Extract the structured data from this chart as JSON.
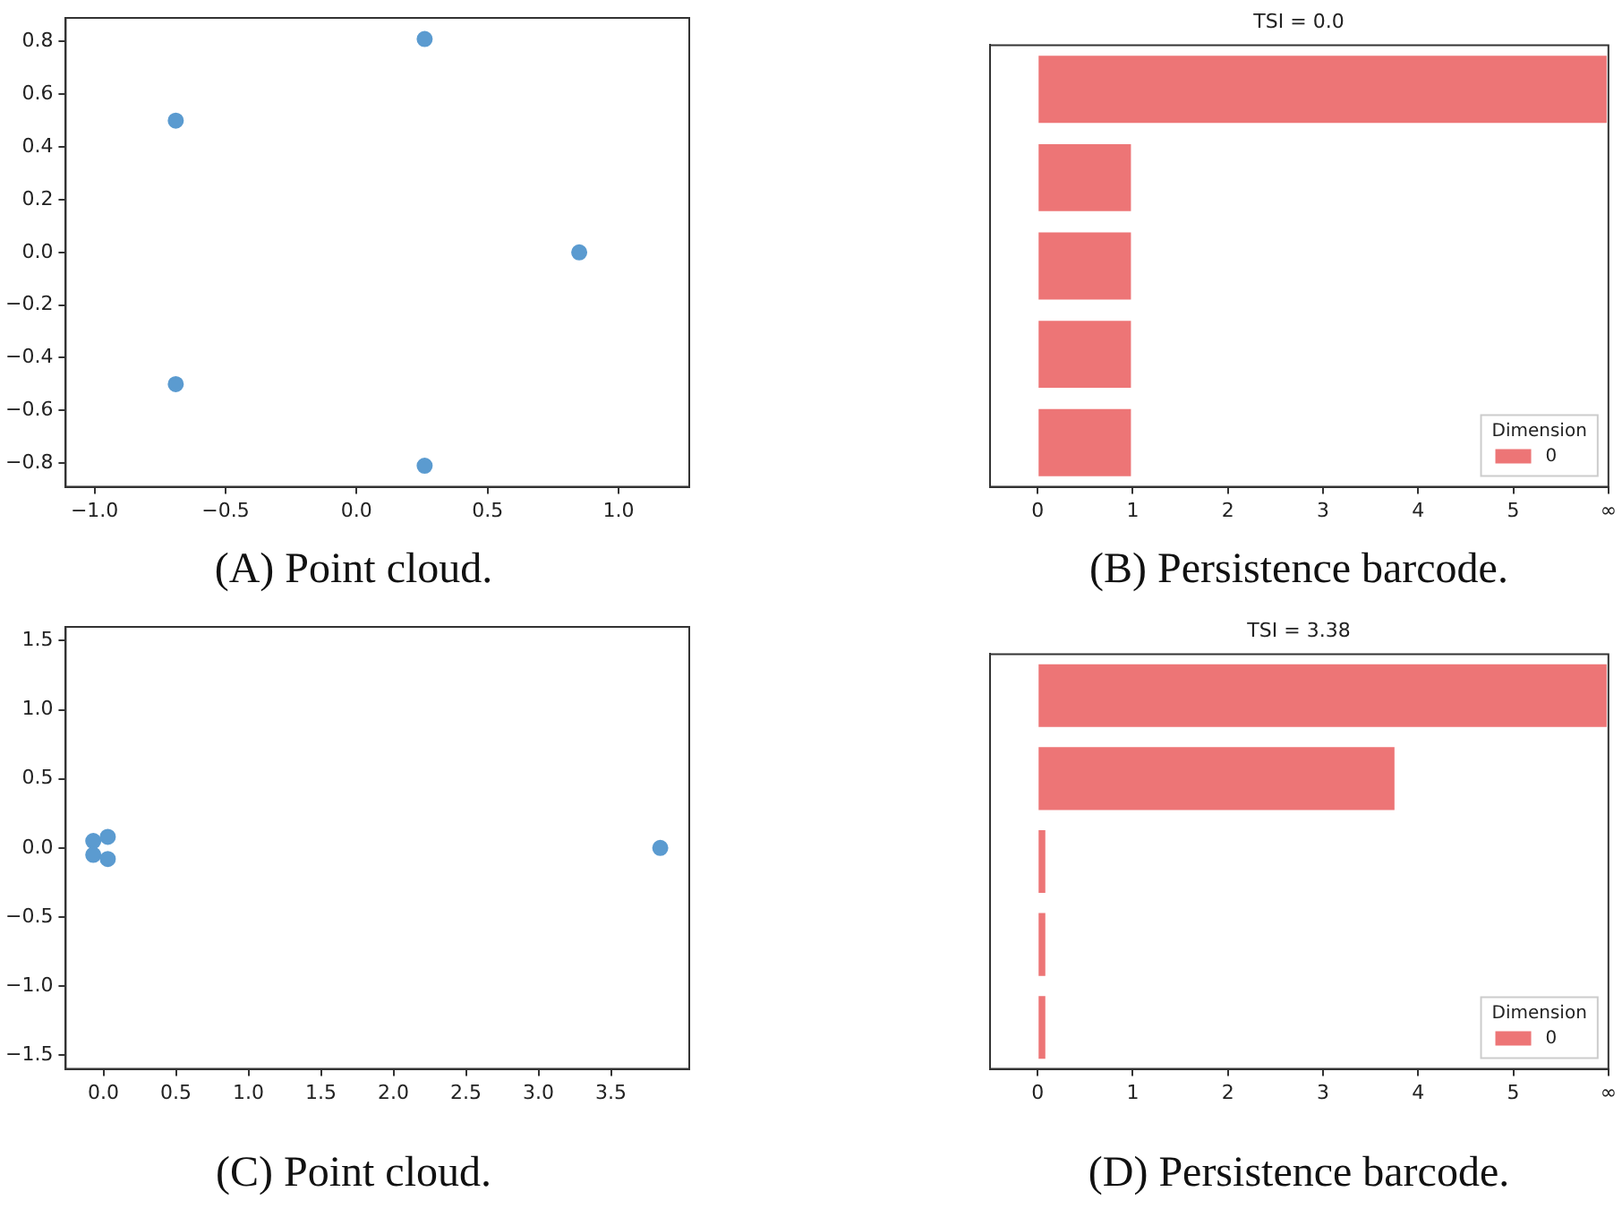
{
  "chart_data": [
    {
      "type": "scatter",
      "x": [
        0.85,
        0.26,
        -0.69,
        -0.69,
        0.26
      ],
      "values": [
        0,
        0.81,
        0.5,
        -0.5,
        -0.81
      ],
      "color": "#5b9bd0",
      "marker": "circle",
      "xlim": [
        -1.11,
        1.27
      ],
      "xticks": [
        {
          "value": -1,
          "label": "−1.0"
        },
        {
          "value": -0.5,
          "label": "−0.5"
        },
        {
          "value": 0,
          "label": "0.0"
        },
        {
          "value": 0.5,
          "label": "0.5"
        },
        {
          "value": 1,
          "label": "1.0"
        }
      ],
      "ylim": [
        -0.89,
        0.89
      ],
      "yticks": [
        {
          "value": -0.8,
          "label": "−0.8"
        },
        {
          "value": -0.6,
          "label": "−0.6"
        },
        {
          "value": -0.4,
          "label": "−0.4"
        },
        {
          "value": -0.2,
          "label": "−0.2"
        },
        {
          "value": 0,
          "label": "0.0"
        },
        {
          "value": 0.2,
          "label": "0.2"
        },
        {
          "value": 0.4,
          "label": "0.4"
        },
        {
          "value": 0.6,
          "label": "0.6"
        },
        {
          "value": 0.8,
          "label": "0.8"
        }
      ],
      "grid": false,
      "annotations": [
        "(A) Point cloud."
      ]
    },
    {
      "type": "bar",
      "orientation": "horizontal",
      "title": "TSI = 0.0",
      "categories": [
        null,
        null,
        null,
        null,
        null
      ],
      "legend_title": "Dimension",
      "legend": "bottom right",
      "series": [
        {
          "name": "0",
          "color": "#ed7576",
          "values": [
            6,
            1,
            1,
            1,
            1
          ]
        }
      ],
      "xlim": [
        -0.5,
        6
      ],
      "xticks": [
        0,
        1,
        2,
        3,
        4,
        5,
        {
          "value": 6,
          "label": "∞"
        }
      ],
      "grid": false,
      "annotations": [
        "(B) Persistence barcode."
      ]
    },
    {
      "type": "scatter",
      "x": [
        -0.07,
        0.03,
        -0.07,
        0.03,
        3.84
      ],
      "values": [
        0.05,
        0.08,
        -0.05,
        -0.08,
        0
      ],
      "color": "#5b9bd0",
      "marker": "circle",
      "xlim": [
        -0.26,
        4.04
      ],
      "xticks": [
        {
          "value": 0,
          "label": "0.0"
        },
        0.5,
        {
          "value": 1,
          "label": "1.0"
        },
        1.5,
        {
          "value": 2,
          "label": "2.0"
        },
        2.5,
        {
          "value": 3,
          "label": "3.0"
        },
        3.5
      ],
      "ylim": [
        -1.6,
        1.6
      ],
      "yticks": [
        {
          "value": -1.5,
          "label": "−1.5"
        },
        {
          "value": -1,
          "label": "−1.0"
        },
        {
          "value": -0.5,
          "label": "−0.5"
        },
        {
          "value": 0,
          "label": "0.0"
        },
        0.5,
        {
          "value": 1,
          "label": "1.0"
        },
        1.5
      ],
      "grid": false,
      "annotations": [
        "(C) Point cloud."
      ]
    },
    {
      "type": "bar",
      "orientation": "horizontal",
      "title": "TSI = 3.38",
      "categories": [
        null,
        null,
        null,
        null,
        null
      ],
      "legend_title": "Dimension",
      "legend": "bottom right",
      "series": [
        {
          "name": "0",
          "color": "#ed7576",
          "values": [
            6,
            3.77,
            0.1,
            0.1,
            0.1
          ]
        }
      ],
      "xlim": [
        -0.5,
        6
      ],
      "xticks": [
        0,
        1,
        2,
        3,
        4,
        5,
        {
          "value": 6,
          "label": "∞"
        }
      ],
      "grid": false,
      "annotations": [
        "(D) Persistence barcode."
      ]
    }
  ]
}
